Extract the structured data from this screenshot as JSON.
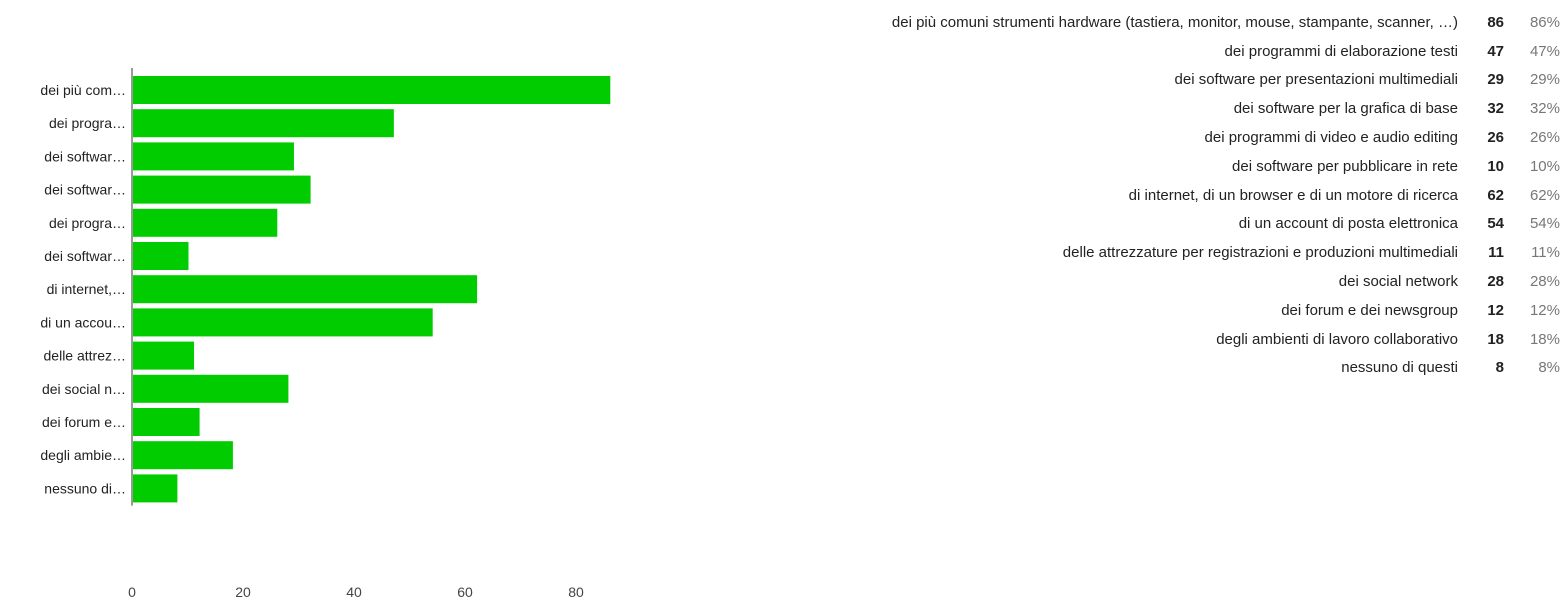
{
  "chart_data": {
    "type": "bar",
    "orientation": "horizontal",
    "categories": [
      "dei più comuni strumenti hardware (tastiera, monitor, mouse, stampante, scanner, …)",
      "dei programmi di elaborazione testi",
      "dei software per presentazioni multimediali",
      "dei software per la grafica di base",
      "dei programmi di video e audio editing",
      "dei software per pubblicare in rete",
      "di internet, di un browser e di un motore di ricerca",
      "di un account di posta elettronica",
      "delle attrezzature per registrazioni e produzioni multimediali",
      "dei social network",
      "dei forum e dei newsgroup",
      "degli ambienti di lavoro collaborativo",
      "nessuno di questi"
    ],
    "axis_labels": [
      "dei più com…",
      "dei progra…",
      "dei softwar…",
      "dei softwar…",
      "dei progra…",
      "dei softwar…",
      "di internet,…",
      "di un accou…",
      "delle attrez…",
      "dei social n…",
      "dei forum e…",
      "degli ambie…",
      "nessuno di…"
    ],
    "values": [
      86,
      47,
      29,
      32,
      26,
      10,
      62,
      54,
      11,
      28,
      12,
      18,
      8
    ],
    "percentages": [
      "86%",
      "47%",
      "29%",
      "32%",
      "26%",
      "10%",
      "62%",
      "54%",
      "11%",
      "28%",
      "12%",
      "18%",
      "8%"
    ],
    "xlim": [
      0,
      90
    ],
    "xticks": [
      0,
      20,
      40,
      60,
      80
    ],
    "bar_color": "#00cc00",
    "grid": false
  }
}
